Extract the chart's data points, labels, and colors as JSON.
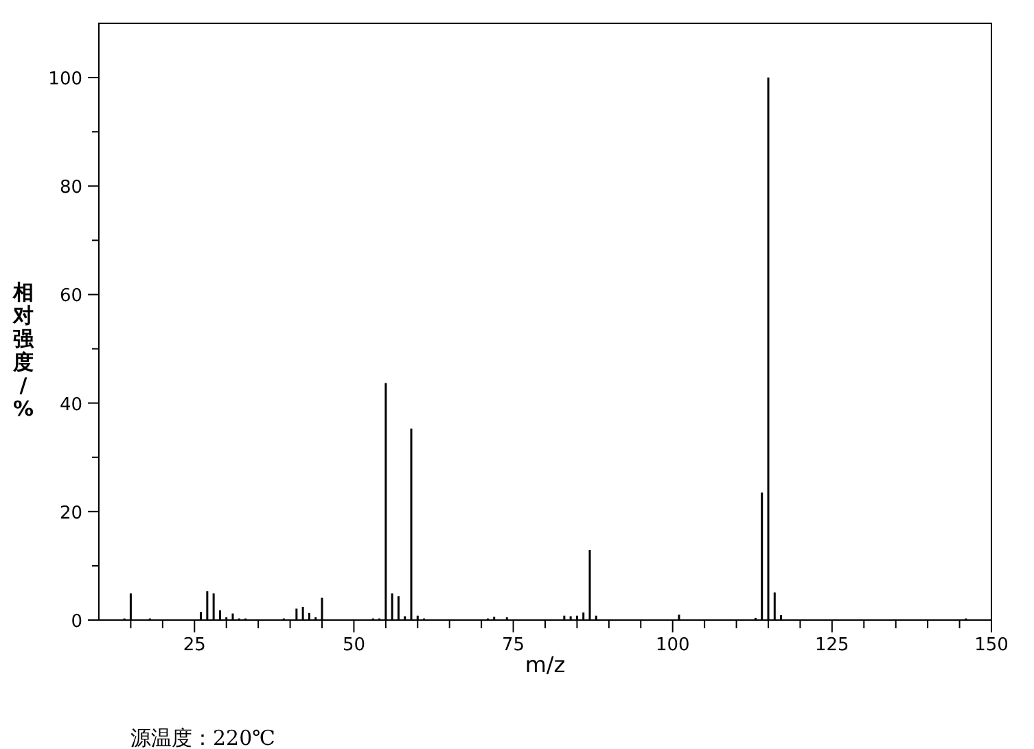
{
  "chart_data": {
    "type": "bar",
    "xlabel": "m/z",
    "ylabel": "相对强度/%",
    "annotations": [
      "源温度：220℃"
    ],
    "x": [
      14,
      15,
      18,
      26,
      27,
      28,
      29,
      30,
      31,
      32,
      33,
      39,
      41,
      42,
      43,
      44,
      45,
      53,
      54,
      55,
      56,
      57,
      58,
      59,
      60,
      61,
      71,
      72,
      74,
      83,
      84,
      85,
      86,
      87,
      88,
      101,
      113,
      114,
      115,
      116,
      117,
      146
    ],
    "values": [
      0.3,
      4.9,
      0.3,
      1.5,
      5.3,
      4.9,
      1.8,
      0.5,
      1.2,
      0.3,
      0.3,
      0.3,
      2.1,
      2.4,
      1.3,
      0.5,
      4.1,
      0.3,
      0.3,
      43.7,
      4.9,
      4.4,
      0.7,
      35.3,
      0.8,
      0.3,
      0.3,
      0.6,
      0.5,
      0.8,
      0.7,
      0.8,
      1.4,
      12.9,
      0.8,
      1.0,
      0.4,
      23.5,
      100,
      5.1,
      0.9,
      0.3
    ],
    "color": "#000000",
    "xlim": [
      10,
      150
    ],
    "xticks": [
      {
        "value": 15,
        "label": null
      },
      {
        "value": 20,
        "label": null
      },
      25,
      {
        "value": 30,
        "label": null
      },
      {
        "value": 35,
        "label": null
      },
      {
        "value": 40,
        "label": null
      },
      {
        "value": 45,
        "label": null
      },
      50,
      {
        "value": 55,
        "label": null
      },
      {
        "value": 60,
        "label": null
      },
      {
        "value": 65,
        "label": null
      },
      {
        "value": 70,
        "label": null
      },
      75,
      {
        "value": 80,
        "label": null
      },
      {
        "value": 85,
        "label": null
      },
      {
        "value": 90,
        "label": null
      },
      {
        "value": 95,
        "label": null
      },
      100,
      {
        "value": 105,
        "label": null
      },
      {
        "value": 110,
        "label": null
      },
      {
        "value": 115,
        "label": null
      },
      {
        "value": 120,
        "label": null
      },
      125,
      {
        "value": 130,
        "label": null
      },
      {
        "value": 135,
        "label": null
      },
      {
        "value": 140,
        "label": null
      },
      {
        "value": 145,
        "label": null
      },
      150
    ],
    "ylim": [
      0,
      110
    ],
    "yticks": [
      0,
      {
        "value": 10,
        "label": null
      },
      20,
      {
        "value": 30,
        "label": null
      },
      40,
      {
        "value": 50,
        "label": null
      },
      60,
      {
        "value": 70,
        "label": null
      },
      80,
      {
        "value": 90,
        "label": null
      },
      100
    ]
  }
}
